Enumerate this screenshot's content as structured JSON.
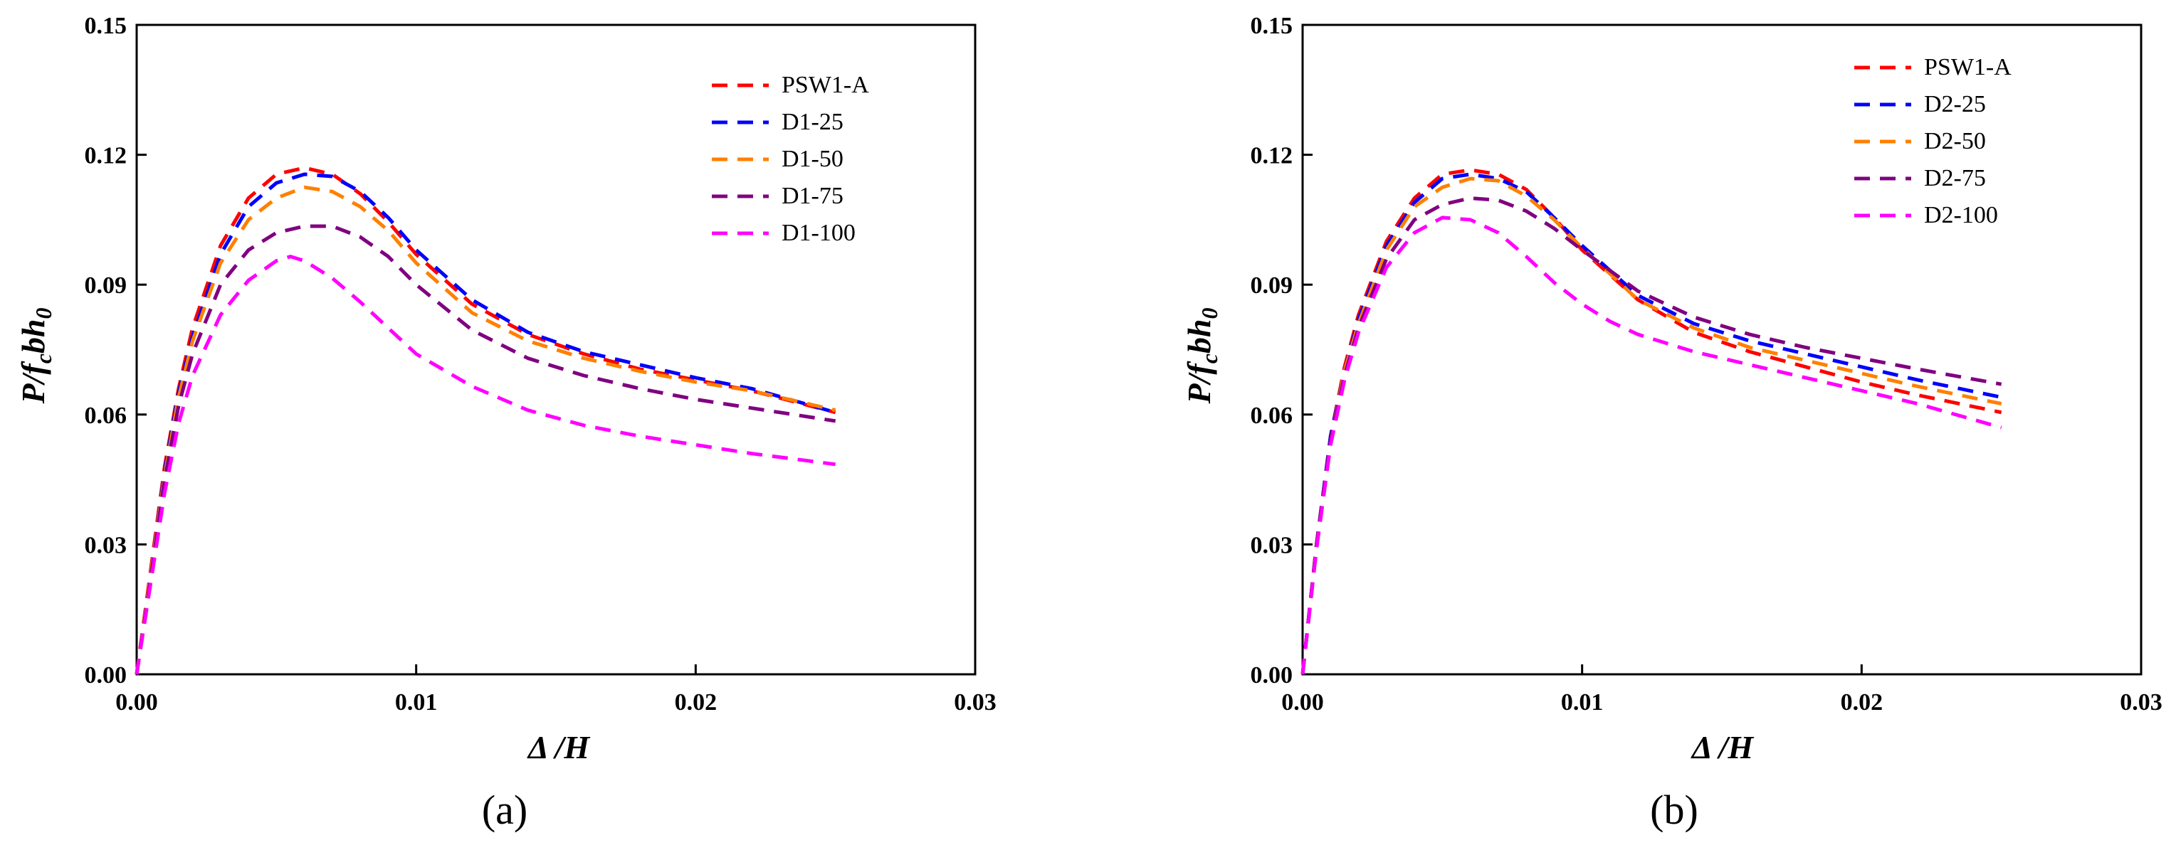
{
  "chart_data": [
    {
      "type": "line",
      "panel_label": "(a)",
      "xlabel": "Δ /H",
      "ylabel": "P/fcbh0",
      "xlim": [
        0,
        0.03
      ],
      "ylim": [
        0,
        0.15
      ],
      "x_ticks": [
        "0.00",
        "0.01",
        "0.02",
        "0.03"
      ],
      "y_ticks": [
        "0.00",
        "0.03",
        "0.06",
        "0.09",
        "0.12",
        "0.15"
      ],
      "legend_position": "top-right",
      "series": [
        {
          "name": "PSW1-A",
          "color": "#ff0000",
          "x": [
            0,
            0.0005,
            0.001,
            0.0015,
            0.002,
            0.003,
            0.004,
            0.005,
            0.006,
            0.007,
            0.008,
            0.009,
            0.01,
            0.012,
            0.014,
            0.016,
            0.018,
            0.02,
            0.022,
            0.025
          ],
          "y": [
            0,
            0.024,
            0.048,
            0.066,
            0.08,
            0.099,
            0.11,
            0.1155,
            0.117,
            0.1155,
            0.111,
            0.1045,
            0.097,
            0.0855,
            0.0785,
            0.074,
            0.0705,
            0.068,
            0.0655,
            0.0605
          ]
        },
        {
          "name": "D1-25",
          "color": "#0000ff",
          "x": [
            0,
            0.0005,
            0.001,
            0.0015,
            0.002,
            0.003,
            0.004,
            0.005,
            0.006,
            0.007,
            0.008,
            0.009,
            0.01,
            0.012,
            0.014,
            0.016,
            0.018,
            0.02,
            0.022,
            0.025
          ],
          "y": [
            0,
            0.023,
            0.047,
            0.065,
            0.078,
            0.097,
            0.108,
            0.1135,
            0.1155,
            0.115,
            0.1115,
            0.1055,
            0.098,
            0.0865,
            0.079,
            0.0745,
            0.0715,
            0.0685,
            0.066,
            0.0605
          ]
        },
        {
          "name": "D1-50",
          "color": "#ff8000",
          "x": [
            0,
            0.0005,
            0.001,
            0.0015,
            0.002,
            0.003,
            0.004,
            0.005,
            0.006,
            0.007,
            0.008,
            0.009,
            0.01,
            0.012,
            0.014,
            0.016,
            0.018,
            0.02,
            0.022,
            0.025
          ],
          "y": [
            0,
            0.023,
            0.046,
            0.064,
            0.077,
            0.095,
            0.105,
            0.11,
            0.1125,
            0.1115,
            0.108,
            0.1025,
            0.095,
            0.0835,
            0.077,
            0.073,
            0.07,
            0.0675,
            0.0655,
            0.061
          ]
        },
        {
          "name": "D1-75",
          "color": "#800080",
          "x": [
            0,
            0.0005,
            0.001,
            0.0015,
            0.002,
            0.003,
            0.004,
            0.005,
            0.006,
            0.007,
            0.008,
            0.009,
            0.01,
            0.012,
            0.014,
            0.016,
            0.018,
            0.02,
            0.022,
            0.025
          ],
          "y": [
            0,
            0.022,
            0.045,
            0.062,
            0.074,
            0.09,
            0.098,
            0.102,
            0.1035,
            0.1035,
            0.101,
            0.0965,
            0.09,
            0.0795,
            0.073,
            0.069,
            0.066,
            0.0635,
            0.0615,
            0.0585
          ]
        },
        {
          "name": "D1-100",
          "color": "#ff00ff",
          "x": [
            0,
            0.0005,
            0.001,
            0.0015,
            0.002,
            0.003,
            0.004,
            0.005,
            0.0055,
            0.006,
            0.007,
            0.008,
            0.009,
            0.01,
            0.012,
            0.014,
            0.016,
            0.018,
            0.02,
            0.022,
            0.025
          ],
          "y": [
            0,
            0.021,
            0.042,
            0.058,
            0.069,
            0.083,
            0.091,
            0.0955,
            0.0965,
            0.0955,
            0.0915,
            0.086,
            0.08,
            0.074,
            0.0665,
            0.061,
            0.0575,
            0.055,
            0.053,
            0.051,
            0.0485
          ]
        }
      ]
    },
    {
      "type": "line",
      "panel_label": "(b)",
      "xlabel": "Δ /H",
      "ylabel": "P/fcbh0",
      "xlim": [
        0,
        0.03
      ],
      "ylim": [
        0,
        0.15
      ],
      "x_ticks": [
        "0.00",
        "0.01",
        "0.02",
        "0.03"
      ],
      "y_ticks": [
        "0.00",
        "0.03",
        "0.06",
        "0.09",
        "0.12",
        "0.15"
      ],
      "legend_position": "top-right",
      "series": [
        {
          "name": "PSW1-A",
          "color": "#ff0000",
          "x": [
            0,
            0.0005,
            0.001,
            0.0015,
            0.002,
            0.003,
            0.004,
            0.005,
            0.006,
            0.007,
            0.008,
            0.009,
            0.01,
            0.012,
            0.014,
            0.016,
            0.018,
            0.02,
            0.022,
            0.025
          ],
          "y": [
            0,
            0.03,
            0.055,
            0.071,
            0.083,
            0.1,
            0.11,
            0.1155,
            0.1165,
            0.1155,
            0.112,
            0.1055,
            0.098,
            0.0865,
            0.079,
            0.0745,
            0.071,
            0.0675,
            0.0645,
            0.0605
          ]
        },
        {
          "name": "D2-25",
          "color": "#0000ff",
          "x": [
            0,
            0.0005,
            0.001,
            0.0015,
            0.002,
            0.003,
            0.004,
            0.005,
            0.006,
            0.007,
            0.008,
            0.009,
            0.01,
            0.012,
            0.014,
            0.016,
            0.018,
            0.02,
            0.022,
            0.025
          ],
          "y": [
            0,
            0.03,
            0.055,
            0.07,
            0.082,
            0.099,
            0.109,
            0.1145,
            0.1155,
            0.1145,
            0.1115,
            0.1055,
            0.099,
            0.0875,
            0.081,
            0.077,
            0.074,
            0.071,
            0.068,
            0.064
          ]
        },
        {
          "name": "D2-50",
          "color": "#ff8000",
          "x": [
            0,
            0.0005,
            0.001,
            0.0015,
            0.002,
            0.003,
            0.004,
            0.005,
            0.006,
            0.007,
            0.008,
            0.009,
            0.01,
            0.012,
            0.014,
            0.016,
            0.018,
            0.02,
            0.022,
            0.025
          ],
          "y": [
            0,
            0.03,
            0.054,
            0.07,
            0.081,
            0.098,
            0.108,
            0.1125,
            0.1145,
            0.114,
            0.1105,
            0.105,
            0.0985,
            0.0865,
            0.08,
            0.0755,
            0.0725,
            0.0695,
            0.0665,
            0.0625
          ]
        },
        {
          "name": "D2-75",
          "color": "#800080",
          "x": [
            0,
            0.0005,
            0.001,
            0.0015,
            0.002,
            0.003,
            0.004,
            0.005,
            0.006,
            0.007,
            0.008,
            0.009,
            0.01,
            0.012,
            0.014,
            0.016,
            0.018,
            0.02,
            0.022,
            0.025
          ],
          "y": [
            0,
            0.03,
            0.054,
            0.069,
            0.08,
            0.096,
            0.105,
            0.1085,
            0.11,
            0.1095,
            0.107,
            0.103,
            0.098,
            0.0885,
            0.0825,
            0.0785,
            0.0755,
            0.073,
            0.0705,
            0.067
          ]
        },
        {
          "name": "D2-100",
          "color": "#ff00ff",
          "x": [
            0,
            0.0005,
            0.001,
            0.0015,
            0.002,
            0.003,
            0.004,
            0.005,
            0.006,
            0.007,
            0.008,
            0.009,
            0.01,
            0.011,
            0.012,
            0.014,
            0.016,
            0.018,
            0.02,
            0.022,
            0.025
          ],
          "y": [
            0,
            0.029,
            0.053,
            0.068,
            0.079,
            0.094,
            0.102,
            0.1055,
            0.105,
            0.102,
            0.0965,
            0.0905,
            0.0855,
            0.0815,
            0.0785,
            0.0745,
            0.0715,
            0.0685,
            0.0655,
            0.0625,
            0.057
          ]
        }
      ]
    }
  ]
}
